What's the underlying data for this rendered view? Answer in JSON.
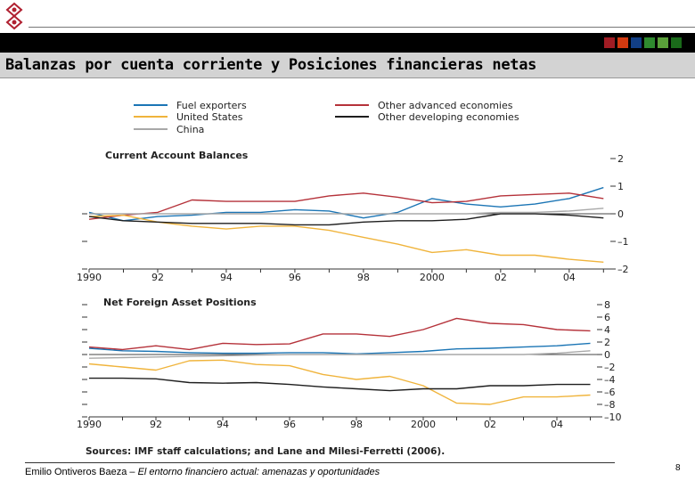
{
  "header": {
    "title": "Balanzas por cuenta corriente y Posiciones financieras netas",
    "swatch_colors": [
      "#a01c24",
      "#d33a10",
      "#123f86",
      "#2f8a2f",
      "#5aa03a",
      "#1a6a1a"
    ]
  },
  "footer": {
    "author": "Emilio Ontiveros Baeza – ",
    "subtitle": "El entorno financiero actual: amenazas y oportunidades",
    "page_number": "8"
  },
  "chart_data": [
    {
      "type": "line",
      "title": "Current Account Balances",
      "xlabel": "",
      "ylabel": "",
      "x": [
        1990,
        1991,
        1992,
        1993,
        1994,
        1995,
        1996,
        1997,
        1998,
        1999,
        2000,
        2001,
        2002,
        2003,
        2004,
        2005
      ],
      "xlim": [
        1990,
        2005.2
      ],
      "ylim": [
        -2,
        2
      ],
      "yticks": [
        2,
        1,
        0,
        -1,
        -2
      ],
      "xtick_values": [
        1990,
        1992,
        1994,
        1996,
        1998,
        2000,
        2002,
        2004
      ],
      "xtick_labels": [
        "1990",
        "92",
        "94",
        "96",
        "98",
        "2000",
        "02",
        "04"
      ],
      "series": [
        {
          "name": "Fuel exporters",
          "color": "#1b75b5",
          "values": [
            0.05,
            -0.25,
            -0.1,
            -0.05,
            0.05,
            0.05,
            0.15,
            0.1,
            -0.15,
            0.05,
            0.55,
            0.35,
            0.25,
            0.35,
            0.55,
            0.95
          ]
        },
        {
          "name": "Other advanced economies",
          "color": "#b5323a",
          "values": [
            -0.2,
            -0.05,
            0.05,
            0.5,
            0.45,
            0.45,
            0.45,
            0.65,
            0.75,
            0.6,
            0.4,
            0.45,
            0.65,
            0.7,
            0.75,
            0.55
          ]
        },
        {
          "name": "United States",
          "color": "#f0b43c",
          "values": [
            -0.1,
            -0.05,
            -0.3,
            -0.45,
            -0.55,
            -0.45,
            -0.45,
            -0.6,
            -0.85,
            -1.1,
            -1.4,
            -1.3,
            -1.5,
            -1.5,
            -1.65,
            -1.75
          ]
        },
        {
          "name": "Other developing economies",
          "color": "#1e1e1e",
          "values": [
            -0.1,
            -0.25,
            -0.3,
            -0.35,
            -0.35,
            -0.35,
            -0.4,
            -0.4,
            -0.3,
            -0.25,
            -0.25,
            -0.2,
            0,
            0,
            -0.05,
            -0.15
          ]
        },
        {
          "name": "China",
          "color": "#a8a8a8",
          "values": [
            0,
            0,
            0,
            0,
            0,
            0,
            0,
            0,
            0,
            0,
            0,
            0,
            0.05,
            0.05,
            0.1,
            0.2
          ]
        }
      ]
    },
    {
      "type": "line",
      "title": "Net Foreign Asset Positions",
      "xlabel": "",
      "ylabel": "",
      "x": [
        1990,
        1991,
        1992,
        1993,
        1994,
        1995,
        1996,
        1997,
        1998,
        1999,
        2000,
        2001,
        2002,
        2003,
        2004,
        2005
      ],
      "xlim": [
        1990,
        2005.2
      ],
      "ylim": [
        -10,
        8
      ],
      "yticks": [
        8,
        6,
        4,
        2,
        0,
        -2,
        -4,
        -6,
        -8,
        -10
      ],
      "xtick_values": [
        1990,
        1992,
        1994,
        1996,
        1998,
        2000,
        2002,
        2004
      ],
      "xtick_labels": [
        "1990",
        "92",
        "94",
        "96",
        "98",
        "2000",
        "02",
        "04"
      ],
      "series": [
        {
          "name": "Fuel exporters",
          "color": "#1b75b5",
          "values": [
            1,
            0.6,
            0.5,
            0.3,
            0.2,
            0.2,
            0.3,
            0.3,
            0.1,
            0.3,
            0.5,
            0.9,
            1,
            1.2,
            1.4,
            1.8
          ]
        },
        {
          "name": "Other advanced economies",
          "color": "#b5323a",
          "values": [
            1.2,
            0.8,
            1.4,
            0.8,
            1.8,
            1.6,
            1.7,
            3.3,
            3.3,
            2.9,
            4,
            5.8,
            5,
            4.8,
            4,
            3.8
          ]
        },
        {
          "name": "United States",
          "color": "#f0b43c",
          "values": [
            -1.5,
            -2,
            -2.5,
            -1,
            -0.9,
            -1.6,
            -1.8,
            -3.2,
            -4,
            -3.5,
            -5,
            -7.8,
            -8,
            -6.8,
            -6.8,
            -6.5
          ]
        },
        {
          "name": "Other developing economies",
          "color": "#1e1e1e",
          "values": [
            -3.8,
            -3.8,
            -3.9,
            -4.5,
            -4.6,
            -4.5,
            -4.8,
            -5.2,
            -5.5,
            -5.8,
            -5.5,
            -5.5,
            -5,
            -5,
            -4.8,
            -4.8
          ]
        },
        {
          "name": "China",
          "color": "#a8a8a8",
          "values": [
            -0.6,
            -0.5,
            -0.4,
            -0.3,
            -0.2,
            -0.1,
            0,
            0,
            0,
            0,
            0,
            0,
            0,
            0,
            0.2,
            0.6
          ]
        }
      ]
    }
  ],
  "legend": {
    "items": [
      {
        "name": "Fuel exporters",
        "color": "#1b75b5"
      },
      {
        "name": "United States",
        "color": "#f0b43c"
      },
      {
        "name": "China",
        "color": "#a8a8a8"
      },
      {
        "name": "Other advanced economies",
        "color": "#b5323a"
      },
      {
        "name": "Other developing economies",
        "color": "#1e1e1e"
      }
    ]
  },
  "source_note": "Sources: IMF staff calculations; and Lane and Milesi-Ferretti (2006)."
}
